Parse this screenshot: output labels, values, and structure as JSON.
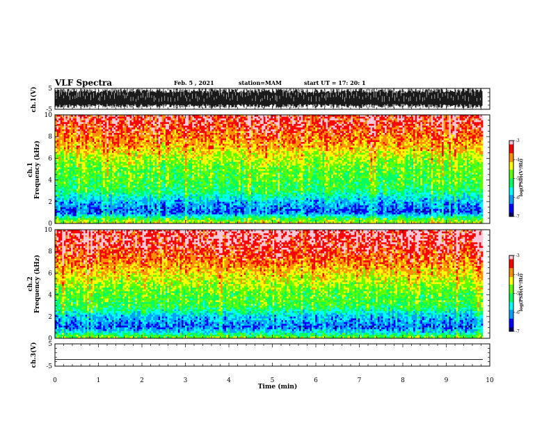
{
  "header": {
    "title": "VLF Spectra",
    "date": "Feb. 5 , 2021",
    "station": "station=MAM",
    "start": "start UT = 17: 20: 1"
  },
  "chart_data": [
    {
      "type": "line",
      "panel": "ch1-waveform",
      "ylabel": "ch.1(V)",
      "yticks": [
        "5",
        "-5"
      ],
      "ylim": [
        -5,
        5
      ],
      "description_values": "dense impulsive signal filling roughly -5 to 5 V across the whole record"
    },
    {
      "type": "heatmap",
      "panel": "ch1-spectrogram",
      "ylabel_line1": "ch.1",
      "ylabel_line2": "Frequency (kHz)",
      "yticks": [
        "0",
        "2",
        "4",
        "6",
        "8",
        "10"
      ],
      "ylim": [
        0,
        10
      ],
      "xlim": [
        0,
        10
      ],
      "colorbar": {
        "ticks": [
          "-3",
          "-4",
          "-5",
          "-6",
          "-7"
        ],
        "label": "log(PSD)(V²/Hz)",
        "range": [
          -7,
          -3
        ]
      },
      "profile_log_psd_by_khz": [
        {
          "f": 0,
          "v": -4.4
        },
        {
          "f": 0.5,
          "v": -5.2
        },
        {
          "f": 1,
          "v": -6.4
        },
        {
          "f": 1.5,
          "v": -6.2
        },
        {
          "f": 2,
          "v": -6.0
        },
        {
          "f": 2.5,
          "v": -5.6
        },
        {
          "f": 3,
          "v": -5.2
        },
        {
          "f": 4,
          "v": -5.0
        },
        {
          "f": 5,
          "v": -4.9
        },
        {
          "f": 6,
          "v": -4.6
        },
        {
          "f": 7,
          "v": -4.1
        },
        {
          "f": 8,
          "v": -3.8
        },
        {
          "f": 9,
          "v": -3.5
        },
        {
          "f": 10,
          "v": -3.4
        }
      ]
    },
    {
      "type": "heatmap",
      "panel": "ch2-spectrogram",
      "ylabel_line1": "ch.2",
      "ylabel_line2": "Frequency (kHz)",
      "yticks": [
        "0",
        "2",
        "4",
        "6",
        "8",
        "10"
      ],
      "ylim": [
        0,
        10
      ],
      "xlim": [
        0,
        10
      ],
      "colorbar": {
        "ticks": [
          "-3",
          "-4",
          "-5",
          "-6",
          "-7"
        ],
        "label": "log(PSD)(V²/Hz)",
        "range": [
          -7,
          -3
        ]
      },
      "profile_log_psd_by_khz": [
        {
          "f": 0,
          "v": -4.6
        },
        {
          "f": 0.5,
          "v": -5.6
        },
        {
          "f": 1,
          "v": -6.3
        },
        {
          "f": 1.5,
          "v": -6.1
        },
        {
          "f": 2,
          "v": -5.9
        },
        {
          "f": 2.5,
          "v": -5.4
        },
        {
          "f": 3,
          "v": -5.0
        },
        {
          "f": 4,
          "v": -4.9
        },
        {
          "f": 5,
          "v": -4.6
        },
        {
          "f": 6,
          "v": -4.2
        },
        {
          "f": 7,
          "v": -3.8
        },
        {
          "f": 8,
          "v": -3.5
        },
        {
          "f": 9,
          "v": -3.3
        },
        {
          "f": 10,
          "v": -3.2
        }
      ]
    },
    {
      "type": "line",
      "panel": "ch3-waveform",
      "ylabel": "ch.3(V)",
      "yticks": [
        "5",
        "-5"
      ],
      "ylim": [
        -5,
        5
      ],
      "series": [
        {
          "x": [
            0,
            9.84
          ],
          "y": [
            -2,
            -2
          ]
        }
      ]
    }
  ],
  "xaxis": {
    "label": "Time (min)",
    "ticks": [
      "0",
      "1",
      "2",
      "3",
      "4",
      "5",
      "6",
      "7",
      "8",
      "9",
      "10"
    ],
    "xlim": [
      0,
      10
    ],
    "data_end": 9.84
  },
  "colors": {
    "colormap": [
      "#000060",
      "#0000ff",
      "#00a0ff",
      "#00ffff",
      "#00ff60",
      "#60ff00",
      "#ffff00",
      "#ff9000",
      "#ff0000",
      "#ffc8d8"
    ]
  }
}
